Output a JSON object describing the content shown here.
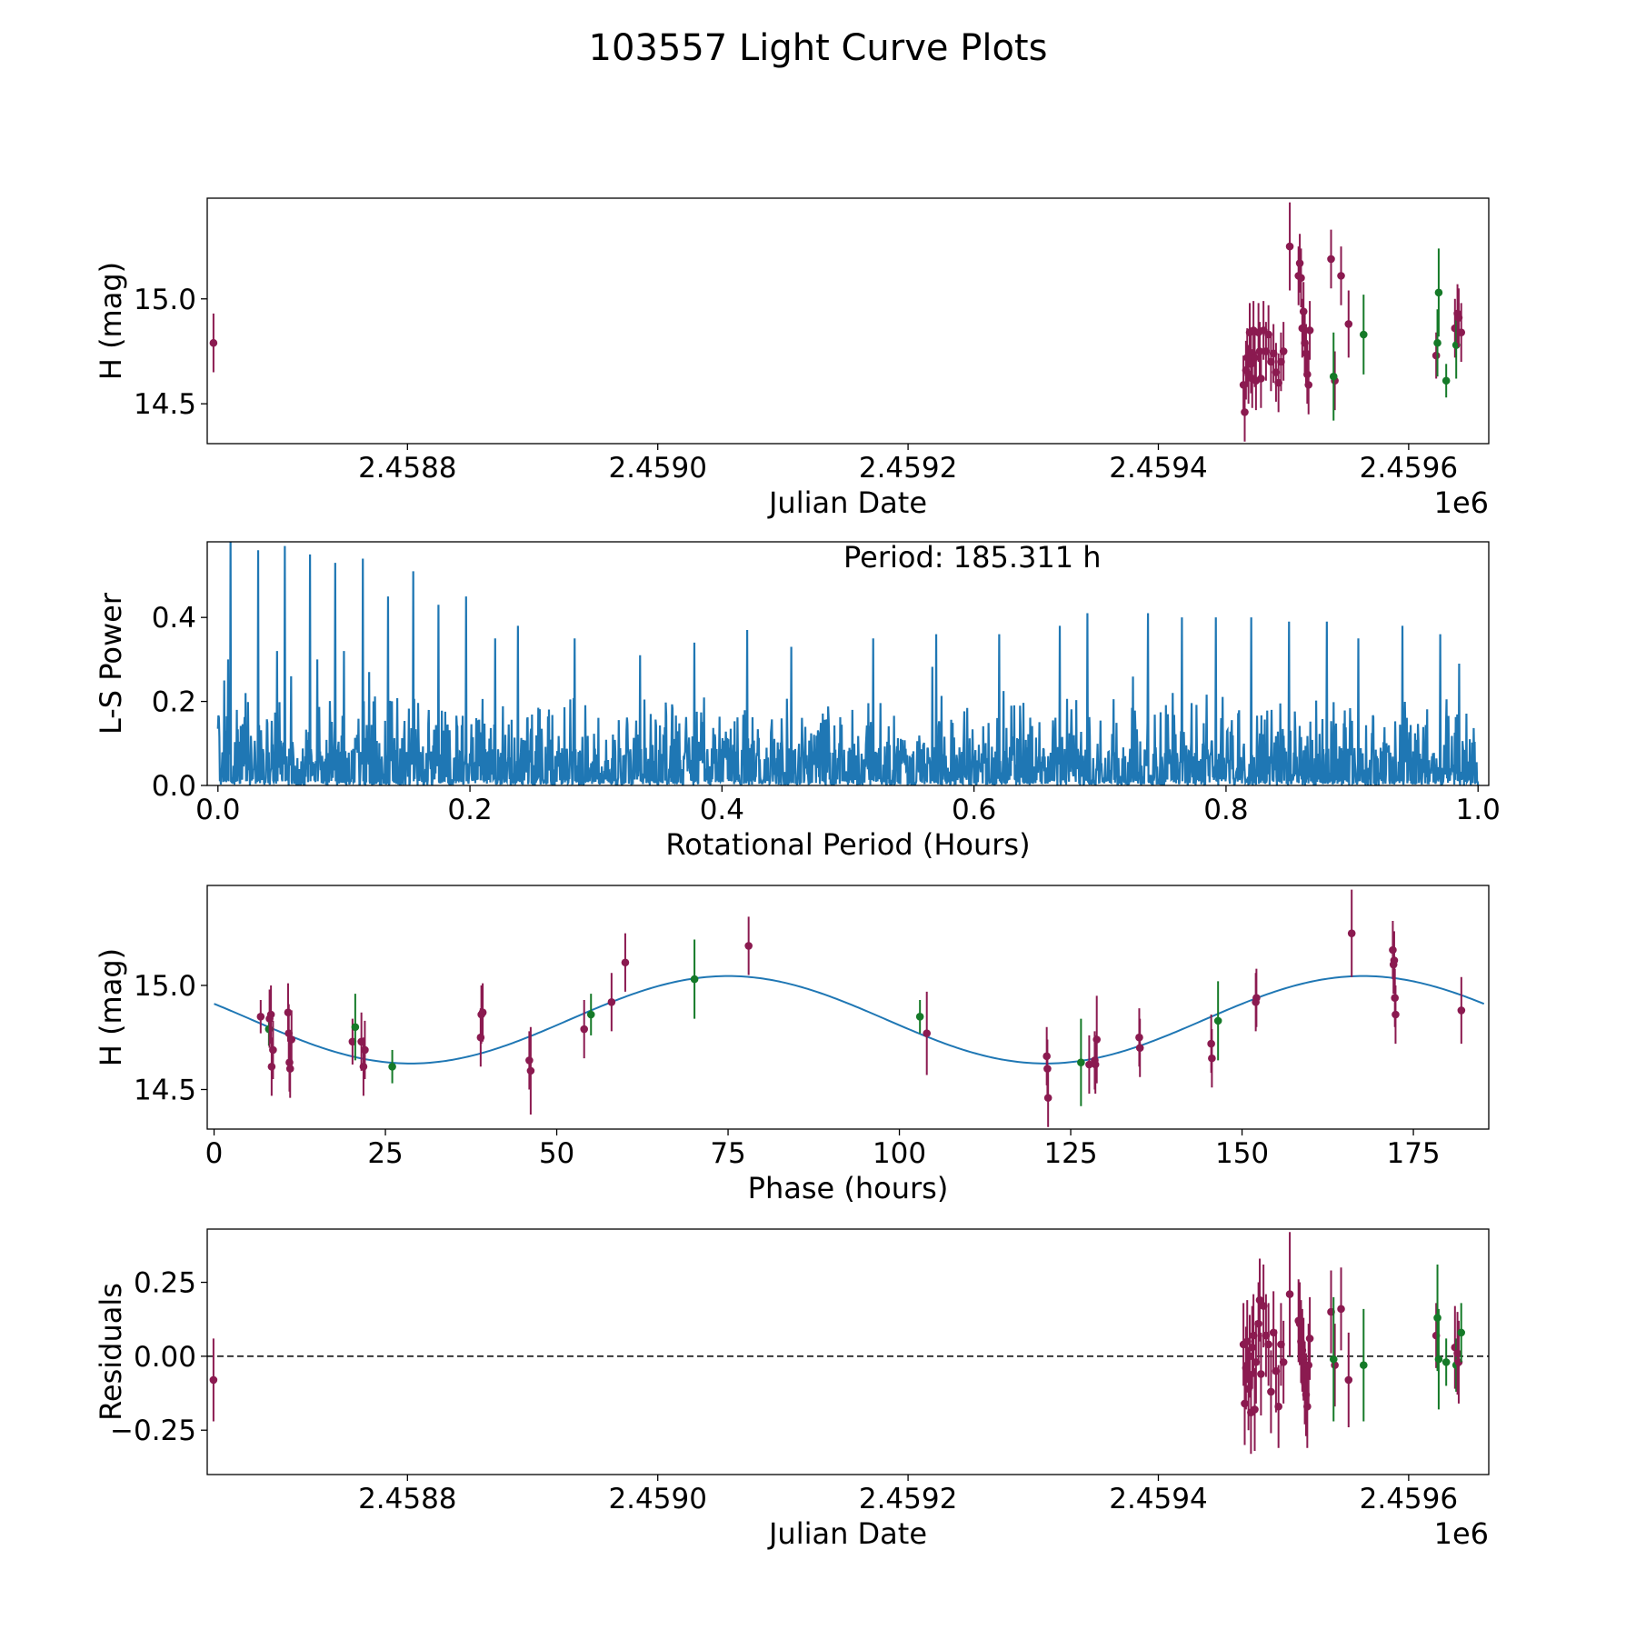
{
  "title": "103557 Light Curve Plots",
  "colors": {
    "magenta": "#8b1a50",
    "green": "#157a28",
    "line": "#1f77b4",
    "axis": "#000000"
  },
  "chart_data": [
    {
      "type": "scatter",
      "name": "light-curve",
      "xlabel": "Julian Date",
      "ylabel": "H (mag)",
      "offset_label": "1e6",
      "xlim": [
        2458640,
        2459664
      ],
      "ylim": [
        14.31,
        15.48
      ],
      "xticks": [
        2458800,
        2459000,
        2459200,
        2459400,
        2459600
      ],
      "xtick_labels": [
        "2.4588",
        "2.4590",
        "2.4592",
        "2.4594",
        "2.4596"
      ],
      "yticks": [
        14.5,
        15.0
      ],
      "ytick_labels": [
        "14.5",
        "15.0"
      ],
      "points": [
        [
          2458645,
          14.79,
          0.14,
          "m"
        ],
        [
          2459468,
          14.59,
          0.14,
          "m"
        ],
        [
          2459469,
          14.46,
          0.14,
          "m"
        ],
        [
          2459470,
          14.66,
          0.14,
          "m"
        ],
        [
          2459471,
          14.72,
          0.14,
          "m"
        ],
        [
          2459472,
          14.64,
          0.14,
          "m"
        ],
        [
          2459473,
          14.84,
          0.14,
          "m"
        ],
        [
          2459474,
          14.69,
          0.14,
          "m"
        ],
        [
          2459475,
          14.62,
          0.14,
          "m"
        ],
        [
          2459476,
          14.85,
          0.14,
          "m"
        ],
        [
          2459477,
          14.72,
          0.14,
          "m"
        ],
        [
          2459478,
          14.61,
          0.14,
          "m"
        ],
        [
          2459480,
          14.84,
          0.14,
          "m"
        ],
        [
          2459481,
          14.75,
          0.14,
          "m"
        ],
        [
          2459482,
          14.62,
          0.14,
          "m"
        ],
        [
          2459484,
          14.85,
          0.14,
          "m"
        ],
        [
          2459486,
          14.75,
          0.14,
          "m"
        ],
        [
          2459488,
          14.83,
          0.14,
          "m"
        ],
        [
          2459490,
          14.7,
          0.14,
          "m"
        ],
        [
          2459492,
          14.74,
          0.14,
          "m"
        ],
        [
          2459494,
          14.65,
          0.14,
          "m"
        ],
        [
          2459496,
          14.6,
          0.14,
          "m"
        ],
        [
          2459498,
          14.7,
          0.14,
          "m"
        ],
        [
          2459500,
          14.75,
          0.14,
          "m"
        ],
        [
          2459505,
          15.25,
          0.21,
          "m"
        ],
        [
          2459512,
          15.11,
          0.14,
          "m"
        ],
        [
          2459513,
          15.17,
          0.14,
          "m"
        ],
        [
          2459514,
          15.1,
          0.14,
          "m"
        ],
        [
          2459515,
          14.86,
          0.14,
          "m"
        ],
        [
          2459516,
          14.94,
          0.14,
          "m"
        ],
        [
          2459517,
          14.79,
          0.14,
          "m"
        ],
        [
          2459518,
          14.74,
          0.14,
          "m"
        ],
        [
          2459519,
          14.64,
          0.14,
          "m"
        ],
        [
          2459520,
          14.59,
          0.14,
          "m"
        ],
        [
          2459521,
          14.85,
          0.14,
          "m"
        ],
        [
          2459538,
          15.19,
          0.14,
          "m"
        ],
        [
          2459541,
          14.61,
          0.14,
          "m"
        ],
        [
          2459546,
          15.11,
          0.14,
          "m"
        ],
        [
          2459552,
          14.88,
          0.16,
          "m"
        ],
        [
          2459540,
          14.63,
          0.21,
          "g"
        ],
        [
          2459564,
          14.83,
          0.19,
          "g"
        ],
        [
          2459622,
          14.73,
          0.11,
          "m"
        ],
        [
          2459623,
          14.79,
          0.16,
          "g"
        ],
        [
          2459624,
          15.03,
          0.21,
          "g"
        ],
        [
          2459630,
          14.61,
          0.08,
          "g"
        ],
        [
          2459637,
          14.86,
          0.14,
          "m"
        ],
        [
          2459638,
          14.78,
          0.16,
          "g"
        ],
        [
          2459639,
          14.93,
          0.14,
          "m"
        ],
        [
          2459640,
          14.91,
          0.14,
          "m"
        ],
        [
          2459642,
          14.84,
          0.14,
          "m"
        ]
      ]
    },
    {
      "type": "line",
      "name": "periodogram",
      "xlabel": "Rotational Period (Hours)",
      "ylabel": "L-S Power",
      "annotation": "Period: 185.311 h",
      "xlim": [
        -0.0085,
        1.0085
      ],
      "ylim": [
        0,
        0.58
      ],
      "xticks": [
        0.0,
        0.2,
        0.4,
        0.6,
        0.8,
        1.0
      ],
      "xtick_labels": [
        "0.0",
        "0.2",
        "0.4",
        "0.6",
        "0.8",
        "1.0"
      ],
      "yticks": [
        0.0,
        0.2,
        0.4
      ],
      "ytick_labels": [
        "0.0",
        "0.2",
        "0.4"
      ],
      "series_range": [
        0.0,
        1.0
      ],
      "peaks": [
        [
          0.005,
          0.25
        ],
        [
          0.008,
          0.3
        ],
        [
          0.01,
          0.6
        ],
        [
          0.015,
          0.18
        ],
        [
          0.022,
          0.22
        ],
        [
          0.032,
          0.56
        ],
        [
          0.047,
          0.32
        ],
        [
          0.053,
          0.57
        ],
        [
          0.058,
          0.26
        ],
        [
          0.073,
          0.55
        ],
        [
          0.079,
          0.3
        ],
        [
          0.093,
          0.53
        ],
        [
          0.1,
          0.32
        ],
        [
          0.115,
          0.54
        ],
        [
          0.12,
          0.27
        ],
        [
          0.135,
          0.45
        ],
        [
          0.155,
          0.51
        ],
        [
          0.175,
          0.43
        ],
        [
          0.197,
          0.45
        ],
        [
          0.22,
          0.35
        ],
        [
          0.238,
          0.38
        ],
        [
          0.283,
          0.35
        ],
        [
          0.335,
          0.31
        ],
        [
          0.378,
          0.34
        ],
        [
          0.42,
          0.37
        ],
        [
          0.455,
          0.33
        ],
        [
          0.52,
          0.35
        ],
        [
          0.57,
          0.36
        ],
        [
          0.62,
          0.36
        ],
        [
          0.668,
          0.38
        ],
        [
          0.69,
          0.41
        ],
        [
          0.738,
          0.41
        ],
        [
          0.765,
          0.4
        ],
        [
          0.792,
          0.4
        ],
        [
          0.82,
          0.4
        ],
        [
          0.85,
          0.39
        ],
        [
          0.88,
          0.39
        ],
        [
          0.905,
          0.35
        ],
        [
          0.94,
          0.38
        ],
        [
          0.97,
          0.36
        ],
        [
          0.985,
          0.29
        ]
      ]
    },
    {
      "type": "scatter",
      "name": "phase-folded",
      "xlabel": "Phase (hours)",
      "ylabel": "H (mag)",
      "xlim": [
        -1,
        186
      ],
      "ylim": [
        14.31,
        15.48
      ],
      "xticks": [
        0,
        25,
        50,
        75,
        100,
        125,
        150,
        175
      ],
      "xtick_labels": [
        "0",
        "25",
        "50",
        "75",
        "100",
        "125",
        "150",
        "175"
      ],
      "yticks": [
        14.5,
        15.0
      ],
      "ytick_labels": [
        "14.5",
        "15.0"
      ],
      "model": {
        "mean": 14.835,
        "amplitude": 0.21,
        "period_hours": 92.65,
        "phase_offset": 51.7,
        "x_range": [
          0,
          185.3
        ]
      },
      "points": [
        [
          6.8,
          14.85,
          0.08,
          "m"
        ],
        [
          8.0,
          14.79,
          0.08,
          "g"
        ],
        [
          8.1,
          14.84,
          0.14,
          "m"
        ],
        [
          8.3,
          14.86,
          0.14,
          "m"
        ],
        [
          8.4,
          14.61,
          0.14,
          "m"
        ],
        [
          8.6,
          14.69,
          0.14,
          "m"
        ],
        [
          10.8,
          14.87,
          0.14,
          "m"
        ],
        [
          10.9,
          14.77,
          0.14,
          "m"
        ],
        [
          11.0,
          14.63,
          0.14,
          "m"
        ],
        [
          11.1,
          14.6,
          0.14,
          "m"
        ],
        [
          11.3,
          14.74,
          0.14,
          "m"
        ],
        [
          20.2,
          14.73,
          0.11,
          "m"
        ],
        [
          20.6,
          14.8,
          0.16,
          "g"
        ],
        [
          21.5,
          14.73,
          0.14,
          "m"
        ],
        [
          21.8,
          14.61,
          0.14,
          "m"
        ],
        [
          22.0,
          14.69,
          0.14,
          "m"
        ],
        [
          26.0,
          14.61,
          0.08,
          "g"
        ],
        [
          38.9,
          14.75,
          0.14,
          "m"
        ],
        [
          39.0,
          14.86,
          0.14,
          "m"
        ],
        [
          39.2,
          14.87,
          0.14,
          "m"
        ],
        [
          46.0,
          14.64,
          0.14,
          "m"
        ],
        [
          46.2,
          14.59,
          0.21,
          "m"
        ],
        [
          54.0,
          14.79,
          0.14,
          "m"
        ],
        [
          55.0,
          14.86,
          0.1,
          "g"
        ],
        [
          58.0,
          14.92,
          0.14,
          "m"
        ],
        [
          60.0,
          15.11,
          0.14,
          "m"
        ],
        [
          70.1,
          15.03,
          0.19,
          "g"
        ],
        [
          78.0,
          15.19,
          0.14,
          "m"
        ],
        [
          103.0,
          14.85,
          0.08,
          "g"
        ],
        [
          104.0,
          14.77,
          0.2,
          "m"
        ],
        [
          121.5,
          14.66,
          0.14,
          "m"
        ],
        [
          121.6,
          14.6,
          0.14,
          "m"
        ],
        [
          121.7,
          14.46,
          0.14,
          "m"
        ],
        [
          126.5,
          14.63,
          0.21,
          "g"
        ],
        [
          127.7,
          14.62,
          0.14,
          "m"
        ],
        [
          128.5,
          14.64,
          0.14,
          "m"
        ],
        [
          128.6,
          14.62,
          0.14,
          "m"
        ],
        [
          128.8,
          14.74,
          0.21,
          "m"
        ],
        [
          135.0,
          14.75,
          0.14,
          "m"
        ],
        [
          135.1,
          14.7,
          0.14,
          "m"
        ],
        [
          145.5,
          14.72,
          0.14,
          "m"
        ],
        [
          145.6,
          14.65,
          0.14,
          "m"
        ],
        [
          146.5,
          14.83,
          0.19,
          "g"
        ],
        [
          152.0,
          14.92,
          0.14,
          "m"
        ],
        [
          152.1,
          14.94,
          0.14,
          "m"
        ],
        [
          166.0,
          15.25,
          0.21,
          "m"
        ],
        [
          172.0,
          15.17,
          0.14,
          "m"
        ],
        [
          172.1,
          15.1,
          0.14,
          "m"
        ],
        [
          172.2,
          15.12,
          0.14,
          "m"
        ],
        [
          172.3,
          14.94,
          0.14,
          "m"
        ],
        [
          172.4,
          14.86,
          0.14,
          "m"
        ],
        [
          182.0,
          14.88,
          0.16,
          "m"
        ]
      ]
    },
    {
      "type": "scatter",
      "name": "residuals",
      "xlabel": "Julian Date",
      "ylabel": "Residuals",
      "offset_label": "1e6",
      "xlim": [
        2458640,
        2459664
      ],
      "ylim": [
        -0.4,
        0.43
      ],
      "xticks": [
        2458800,
        2459000,
        2459200,
        2459400,
        2459600
      ],
      "xtick_labels": [
        "2.4588",
        "2.4590",
        "2.4592",
        "2.4594",
        "2.4596"
      ],
      "yticks": [
        0.25,
        0.0,
        -0.25
      ],
      "ytick_labels": [
        "0.25",
        "0.00",
        "−0.25"
      ],
      "reference_line": 0.0,
      "points": [
        [
          2458645,
          -0.08,
          0.14,
          "m"
        ],
        [
          2459468,
          0.04,
          0.14,
          "m"
        ],
        [
          2459469,
          -0.16,
          0.14,
          "m"
        ],
        [
          2459470,
          -0.04,
          0.14,
          "m"
        ],
        [
          2459471,
          0.05,
          0.14,
          "m"
        ],
        [
          2459472,
          -0.11,
          0.14,
          "m"
        ],
        [
          2459473,
          0.0,
          0.14,
          "m"
        ],
        [
          2459474,
          -0.19,
          0.14,
          "m"
        ],
        [
          2459475,
          0.03,
          0.14,
          "m"
        ],
        [
          2459476,
          0.07,
          0.14,
          "m"
        ],
        [
          2459477,
          -0.18,
          0.14,
          "m"
        ],
        [
          2459478,
          -0.02,
          0.14,
          "m"
        ],
        [
          2459480,
          0.11,
          0.14,
          "m"
        ],
        [
          2459481,
          0.19,
          0.14,
          "m"
        ],
        [
          2459482,
          -0.06,
          0.14,
          "m"
        ],
        [
          2459484,
          0.17,
          0.14,
          "m"
        ],
        [
          2459486,
          0.07,
          0.14,
          "m"
        ],
        [
          2459488,
          0.04,
          0.14,
          "m"
        ],
        [
          2459490,
          -0.12,
          0.14,
          "m"
        ],
        [
          2459492,
          0.08,
          0.14,
          "m"
        ],
        [
          2459494,
          -0.05,
          0.14,
          "m"
        ],
        [
          2459496,
          -0.17,
          0.14,
          "m"
        ],
        [
          2459498,
          0.04,
          0.14,
          "m"
        ],
        [
          2459500,
          -0.02,
          0.14,
          "m"
        ],
        [
          2459505,
          0.21,
          0.21,
          "m"
        ],
        [
          2459512,
          0.12,
          0.14,
          "m"
        ],
        [
          2459513,
          0.11,
          0.14,
          "m"
        ],
        [
          2459514,
          0.05,
          0.14,
          "m"
        ],
        [
          2459515,
          0.02,
          0.14,
          "m"
        ],
        [
          2459516,
          -0.01,
          0.14,
          "m"
        ],
        [
          2459517,
          -0.09,
          0.14,
          "m"
        ],
        [
          2459518,
          -0.13,
          0.14,
          "m"
        ],
        [
          2459519,
          -0.17,
          0.14,
          "m"
        ],
        [
          2459520,
          -0.03,
          0.14,
          "m"
        ],
        [
          2459521,
          0.06,
          0.14,
          "m"
        ],
        [
          2459538,
          0.15,
          0.14,
          "m"
        ],
        [
          2459541,
          -0.03,
          0.14,
          "m"
        ],
        [
          2459546,
          0.16,
          0.14,
          "m"
        ],
        [
          2459552,
          -0.08,
          0.16,
          "m"
        ],
        [
          2459540,
          -0.01,
          0.21,
          "g"
        ],
        [
          2459564,
          -0.03,
          0.19,
          "g"
        ],
        [
          2459622,
          0.07,
          0.11,
          "m"
        ],
        [
          2459623,
          0.13,
          0.18,
          "g"
        ],
        [
          2459624,
          -0.01,
          0.17,
          "g"
        ],
        [
          2459630,
          -0.02,
          0.08,
          "g"
        ],
        [
          2459637,
          0.03,
          0.14,
          "m"
        ],
        [
          2459638,
          -0.03,
          0.09,
          "g"
        ],
        [
          2459639,
          0.01,
          0.14,
          "m"
        ],
        [
          2459640,
          -0.02,
          0.14,
          "m"
        ],
        [
          2459642,
          0.08,
          0.1,
          "g"
        ]
      ]
    }
  ]
}
